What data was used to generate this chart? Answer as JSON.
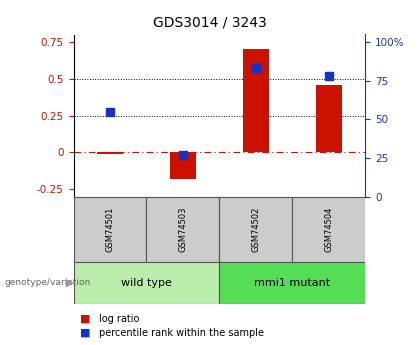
{
  "title": "GDS3014 / 3243",
  "samples": [
    "GSM74501",
    "GSM74503",
    "GSM74502",
    "GSM74504"
  ],
  "log_ratios": [
    -0.01,
    -0.18,
    0.7,
    0.46
  ],
  "percentile_ranks_pct": [
    55,
    27,
    83,
    78
  ],
  "groups": [
    {
      "label": "wild type",
      "samples": [
        0,
        1
      ],
      "color": "#b8e6b0"
    },
    {
      "label": "mmi1 mutant",
      "samples": [
        2,
        3
      ],
      "color": "#66dd66"
    }
  ],
  "bar_color": "#cc1100",
  "square_color": "#1133cc",
  "ylim_left": [
    -0.3,
    0.8
  ],
  "ylim_right": [
    0,
    105
  ],
  "yticks_left": [
    -0.25,
    0.0,
    0.25,
    0.5,
    0.75
  ],
  "ytick_labels_left": [
    "-0.25",
    "0",
    "0.25",
    "0.5",
    "0.75"
  ],
  "yticks_right": [
    0,
    25,
    50,
    75,
    100
  ],
  "ytick_labels_right": [
    "0",
    "25",
    "50",
    "75",
    "100%"
  ],
  "hlines": [
    0.25,
    0.5
  ],
  "hline_zero": 0.0,
  "bg_color": "#ffffff",
  "plot_bg": "#ffffff",
  "group_label": "genotype/variation",
  "legend_logratio": "log ratio",
  "legend_percentile": "percentile rank within the sample",
  "bar_width": 0.35,
  "square_size": 40,
  "sample_box_color": "#cccccc",
  "group1_color": "#bbeeaa",
  "group2_color": "#55dd55"
}
